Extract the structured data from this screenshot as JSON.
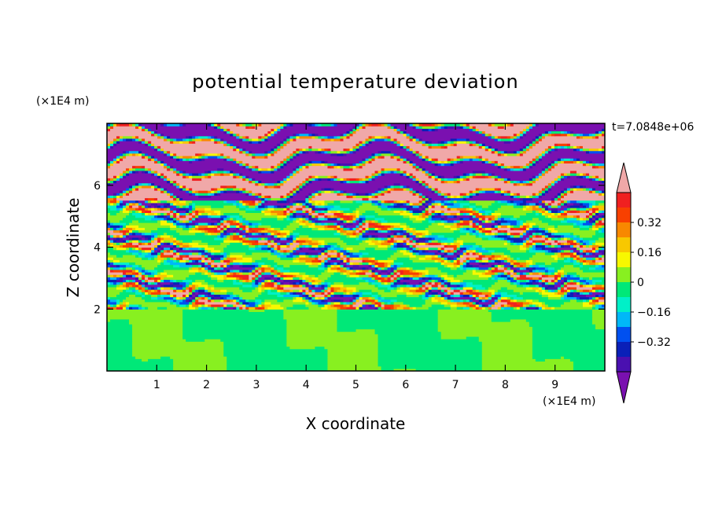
{
  "chart_data": {
    "type": "heatmap",
    "title": "potential temperature deviation",
    "xlabel": "X coordinate",
    "ylabel": "Z coordinate",
    "x_unit": "(×1E4 m)",
    "y_unit": "(×1E4 m)",
    "time_label": "t=7.0848e+06",
    "xlim": [
      0,
      10
    ],
    "ylim": [
      0,
      8
    ],
    "x_ticks": [
      "1",
      "2",
      "3",
      "4",
      "5",
      "6",
      "7",
      "8",
      "9"
    ],
    "y_ticks": [
      "2",
      "4",
      "6"
    ],
    "colorbar": {
      "levels": [
        -0.48,
        -0.4,
        -0.32,
        -0.24,
        -0.16,
        -0.08,
        0,
        0.08,
        0.16,
        0.24,
        0.32,
        0.4,
        0.48
      ],
      "colors": [
        "#7a10b0",
        "#4a10b0",
        "#0a20b8",
        "#0050f0",
        "#00b8f8",
        "#00f0c8",
        "#00e878",
        "#88f020",
        "#f8f800",
        "#f8c800",
        "#f88800",
        "#f84000",
        "#f02020",
        "#f0a8a8"
      ],
      "tick_labels": [
        "0.32",
        "0.16",
        "0",
        "−0.16",
        "−0.32"
      ],
      "extend": "both"
    },
    "field_description_layers": {
      "upper_band_z": [
        5.5,
        8
      ],
      "upper_band_pattern": "alternating pink (>0.48) and purple (<-0.48) horizontal layers",
      "middle_band_z": [
        2,
        5.5
      ],
      "middle_band_pattern": "thin multicolor horizontal streaks",
      "lower_band_z": [
        0,
        2
      ],
      "lower_band_pattern": "mixed light green (~0.04) and green (~-0.04)"
    }
  }
}
